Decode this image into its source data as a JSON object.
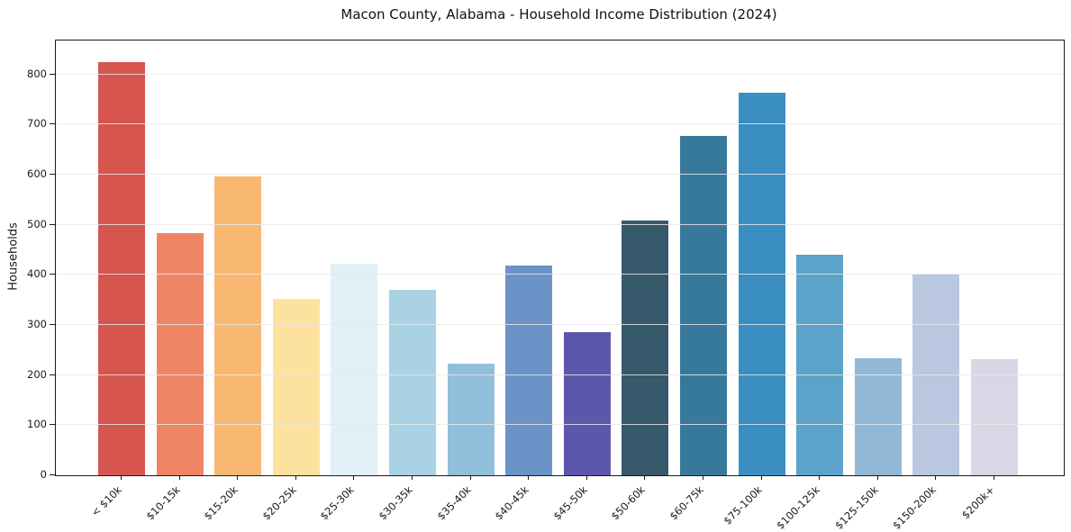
{
  "figure": {
    "background": "#ffffff",
    "axis_color": "#1a1a1a",
    "grid_color": "#e8e8e8",
    "text_color": "#1a1a1a"
  },
  "chart_data": {
    "type": "bar",
    "title": "Macon County, Alabama - Household Income Distribution (2024)",
    "xlabel": "",
    "ylabel": "Households",
    "categories": [
      "< $10k",
      "$10-15k",
      "$15-20k",
      "$20-25k",
      "$25-30k",
      "$30-35k",
      "$35-40k",
      "$40-45k",
      "$45-50k",
      "$50-60k",
      "$60-75k",
      "$75-100k",
      "$100-125k",
      "$125-150k",
      "$150-200k",
      "$200k+"
    ],
    "values": [
      824,
      484,
      597,
      352,
      422,
      370,
      223,
      418,
      286,
      509,
      677,
      764,
      440,
      234,
      401,
      232
    ],
    "bar_colors": [
      "#d6554f",
      "#f08566",
      "#f9b871",
      "#fce29e",
      "#e1f0f7",
      "#aad2e5",
      "#92bfdc",
      "#6b93c7",
      "#5b58ab",
      "#36596b",
      "#36799b",
      "#3a8ec2",
      "#5ba3c9",
      "#92b8d8",
      "#b9c8e0",
      "#d8d7e6"
    ],
    "y_ticks": [
      0,
      100,
      200,
      300,
      400,
      500,
      600,
      700,
      800
    ],
    "ylim": [
      0,
      868
    ],
    "grid": "horizontal-only",
    "legend": "none"
  }
}
